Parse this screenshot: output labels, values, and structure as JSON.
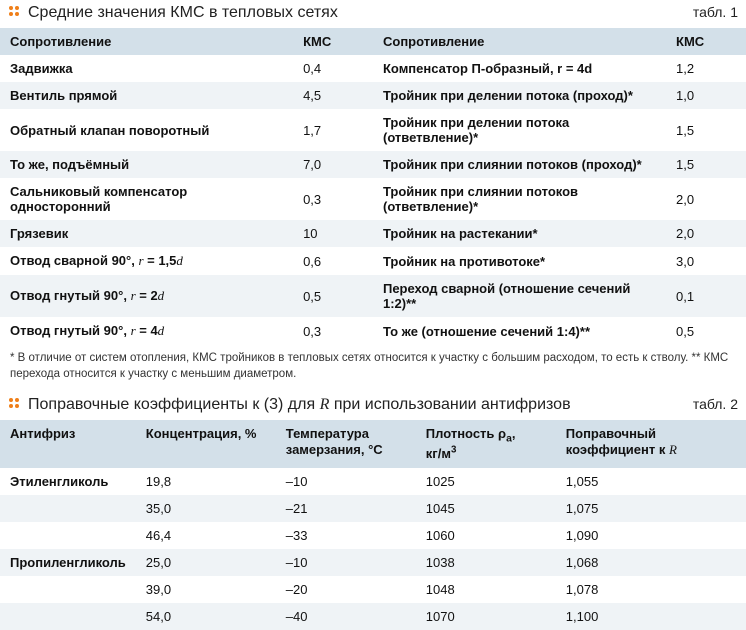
{
  "colors": {
    "header_bg": "#d3e0e9",
    "row_even_bg": "#eff3f6",
    "row_odd_bg": "#ffffff",
    "dot": "#ef7f1a",
    "text": "#111111"
  },
  "table1": {
    "title": "Средние значения КМС в тепловых сетях",
    "label": "табл. 1",
    "header_left": "Сопротивление",
    "header_kmc": "КМС",
    "header_right": "Сопротивление",
    "rows": [
      {
        "left": "Задвижка",
        "lk": "0,4",
        "right_html": "<b>Компенсатор П-образный</b>, r = 4d",
        "rk": "1,2"
      },
      {
        "left": "Вентиль прямой",
        "lk": "4,5",
        "right_html": "<b>Тройник при делении потока (проход)*</b>",
        "rk": "1,0"
      },
      {
        "left": "Обратный клапан поворотный",
        "lk": "1,7",
        "right_html": "<b>Тройник при делении потока (ответвление)*</b>",
        "rk": "1,5"
      },
      {
        "left": "То же, подъёмный",
        "lk": "7,0",
        "right_html": "<b>Тройник при слиянии потоков (проход)*</b>",
        "rk": "1,5"
      },
      {
        "left": "Сальниковый компенсатор односторонний",
        "lk": "0,3",
        "right_html": "<b>Тройник при слиянии потоков (ответвление)*</b>",
        "rk": "2,0"
      },
      {
        "left": "Грязевик",
        "lk": "10",
        "right_html": "<b>Тройник на растекании*</b>",
        "rk": "2,0"
      },
      {
        "left_html": "<b>Отвод сварной</b> 90°, <span class='ital-math'>r</span> = 1,5<span class='ital-math'>d</span>",
        "lk": "0,6",
        "right_html": "<b>Тройник на противотоке*</b>",
        "rk": "3,0"
      },
      {
        "left_html": "<b>Отвод гнутый</b> 90°, <span class='ital-math'>r</span> = 2<span class='ital-math'>d</span>",
        "lk": "0,5",
        "right_html": "<b>Переход сварной (отношение сечений 1:2)**</b>",
        "rk": "0,1"
      },
      {
        "left_html": "<b>Отвод гнутый</b> 90°, <span class='ital-math'>r</span> = 4<span class='ital-math'>d</span>",
        "lk": "0,3",
        "right_html": "<b>То же (отношение сечений 1:4)**</b>",
        "rk": "0,5"
      }
    ],
    "footnote": "* В отличие от систем отопления, КМС тройников в тепловых сетях относится к участку с большим расходом, то есть к стволу. ** КМС перехода относится к участку с меньшим диаметром."
  },
  "table2": {
    "title_html": "Поправочные коэффициенты к (3) для <span class='ital'>R</span> при использовании антифризов",
    "label": "табл. 2",
    "headers": {
      "a": "Антифриз",
      "b": "Концентрация, %",
      "c_html": "Температура<br>замерзания, °C",
      "d_html": "Плотность ρ<span class='subscript'>a</span>,<br>кг/м<sup>3</sup>",
      "e_html": "Поправочный<br>коэффициент к <span class='ital-math'>R</span>"
    },
    "rows": [
      {
        "name": "Этиленгликоль",
        "conc": "19,8",
        "temp": "–10",
        "dens": "1025",
        "coef": "1,055"
      },
      {
        "name": "",
        "conc": "35,0",
        "temp": "–21",
        "dens": "1045",
        "coef": "1,075"
      },
      {
        "name": "",
        "conc": "46,4",
        "temp": "–33",
        "dens": "1060",
        "coef": "1,090"
      },
      {
        "name": "Пропиленгликоль",
        "conc": "25,0",
        "temp": "–10",
        "dens": "1038",
        "coef": "1,068"
      },
      {
        "name": "",
        "conc": "39,0",
        "temp": "–20",
        "dens": "1048",
        "coef": "1,078"
      },
      {
        "name": "",
        "conc": "54,0",
        "temp": "–40",
        "dens": "1070",
        "coef": "1,100"
      }
    ]
  }
}
